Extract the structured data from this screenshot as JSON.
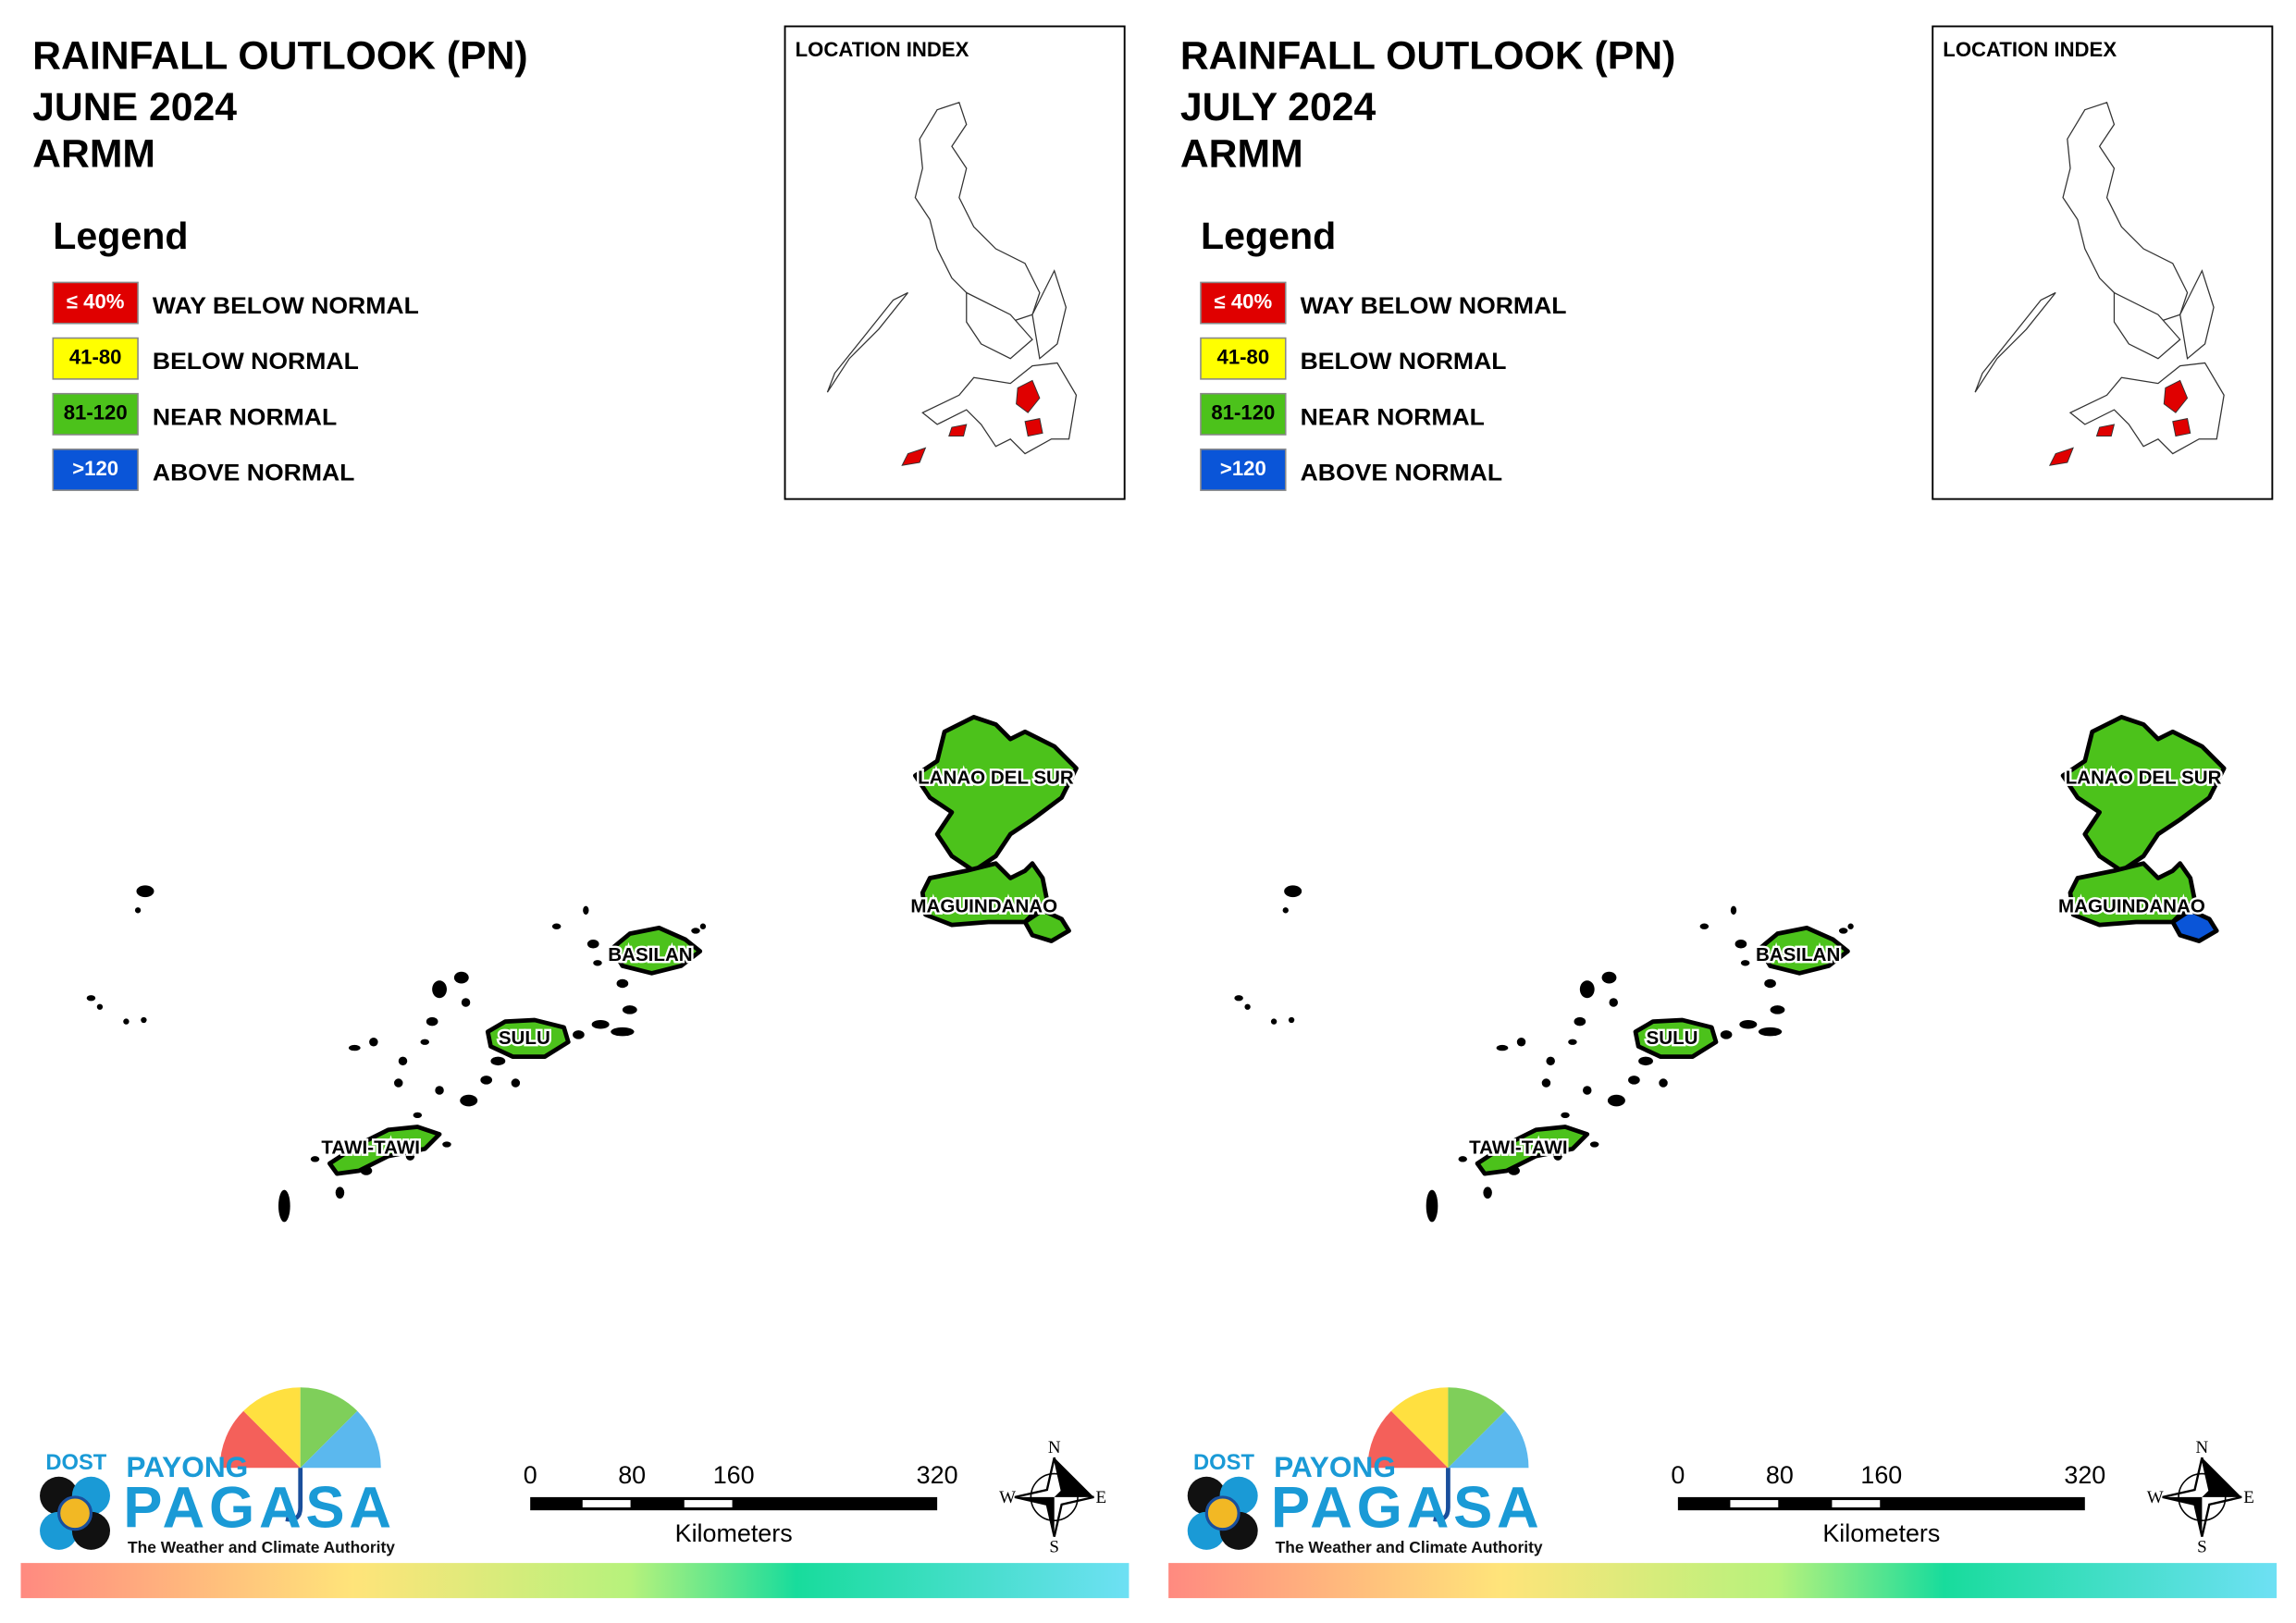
{
  "panels": [
    {
      "title": [
        "RAINFALL OUTLOOK (PN)",
        "JUNE 2024",
        "ARMM"
      ],
      "legend_title": "Legend",
      "legend": [
        {
          "box": "≤ 40%",
          "label": "WAY BELOW NORMAL",
          "color": "#e00000",
          "text_color": "#ffffff"
        },
        {
          "box": "41-80",
          "label": "BELOW NORMAL",
          "color": "#ffff00",
          "text_color": "#000000"
        },
        {
          "box": "81-120",
          "label": "NEAR NORMAL",
          "color": "#4cc21b",
          "text_color": "#000000"
        },
        {
          "box": ">120",
          "label": "ABOVE NORMAL",
          "color": "#0a55d8",
          "text_color": "#ffffff"
        }
      ],
      "location_index": "LOCATION INDEX",
      "provinces": [
        {
          "label": "LANAO DEL SUR",
          "colors": [
            "#4cc21b"
          ]
        },
        {
          "label": "MAGUINDANAO",
          "colors": [
            "#4cc21b"
          ]
        },
        {
          "label": "BASILAN",
          "colors": [
            "#4cc21b"
          ]
        },
        {
          "label": "SULU",
          "colors": [
            "#4cc21b"
          ]
        },
        {
          "label": "TAWI-TAWI",
          "colors": [
            "#4cc21b"
          ]
        }
      ],
      "scale": {
        "ticks": [
          0,
          80,
          160,
          320
        ],
        "unit": "Kilometers"
      },
      "compass": [
        "N",
        "E",
        "S",
        "W"
      ],
      "logo": {
        "agency": "DOST",
        "brand": [
          "PAYONG",
          "PAGASA"
        ],
        "tagline": "The Weather and Climate Authority"
      }
    },
    {
      "title": [
        "RAINFALL OUTLOOK (PN)",
        "JULY 2024",
        "ARMM"
      ],
      "legend_title": "Legend",
      "legend": [
        {
          "box": "≤ 40%",
          "label": "WAY BELOW NORMAL",
          "color": "#e00000",
          "text_color": "#ffffff"
        },
        {
          "box": "41-80",
          "label": "BELOW NORMAL",
          "color": "#ffff00",
          "text_color": "#000000"
        },
        {
          "box": "81-120",
          "label": "NEAR NORMAL",
          "color": "#4cc21b",
          "text_color": "#000000"
        },
        {
          "box": ">120",
          "label": "ABOVE NORMAL",
          "color": "#0a55d8",
          "text_color": "#ffffff"
        }
      ],
      "location_index": "LOCATION INDEX",
      "provinces": [
        {
          "label": "LANAO DEL SUR",
          "colors": [
            "#4cc21b"
          ]
        },
        {
          "label": "MAGUINDANAO",
          "colors": [
            "#4cc21b",
            "#0a55d8"
          ]
        },
        {
          "label": "BASILAN",
          "colors": [
            "#4cc21b"
          ]
        },
        {
          "label": "SULU",
          "colors": [
            "#4cc21b"
          ]
        },
        {
          "label": "TAWI-TAWI",
          "colors": [
            "#4cc21b"
          ]
        }
      ],
      "scale": {
        "ticks": [
          0,
          80,
          160,
          320
        ],
        "unit": "Kilometers"
      },
      "compass": [
        "N",
        "E",
        "S",
        "W"
      ],
      "logo": {
        "agency": "DOST",
        "brand": [
          "PAYONG",
          "PAGASA"
        ],
        "tagline": "The Weather and Climate Authority"
      }
    }
  ]
}
